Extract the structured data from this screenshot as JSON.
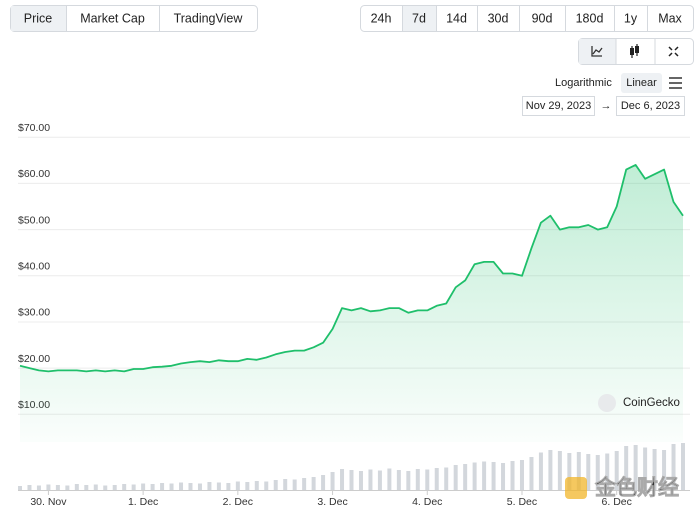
{
  "controls": {
    "tabs": [
      "Price",
      "Market Cap",
      "TradingView"
    ],
    "ranges": [
      "24h",
      "7d",
      "14d",
      "30d",
      "90d",
      "180d",
      "1y",
      "Max"
    ],
    "scale_options": [
      "Logarithmic",
      "Linear"
    ],
    "date_from": "Nov 29, 2023",
    "date_arrow": "→",
    "date_to": "Dec 6, 2023",
    "watermark": "CoinGecko",
    "source_mark": "金色财经"
  },
  "chart_data": {
    "type": "line",
    "color": "#1fbf6b",
    "fill": true,
    "grid": true,
    "values": [
      20.5,
      20,
      19.5,
      19.3,
      19.5,
      19.5,
      19.5,
      19.3,
      19.5,
      19.3,
      19.5,
      19.3,
      19.8,
      19.8,
      20.2,
      20.3,
      20.5,
      21,
      21.3,
      21.5,
      21.3,
      21.7,
      21.5,
      21.5,
      22,
      21.8,
      22.3,
      23,
      23.5,
      23.8,
      23.8,
      24.5,
      25.5,
      28.5,
      33,
      32.5,
      33,
      32.3,
      32.5,
      33,
      33,
      32,
      32.5,
      32.5,
      33.5,
      34,
      37.5,
      39,
      42.5,
      43,
      43,
      40.5,
      40.5,
      40,
      46,
      51.5,
      53,
      50,
      50.5,
      50.5,
      51,
      50,
      50.5,
      55,
      63,
      64,
      61,
      62,
      63,
      56,
      53
    ],
    "volume": {
      "color": "#d3d7dc",
      "axis": "y2",
      "values": [
        8,
        10,
        9,
        11,
        10,
        9,
        12,
        10,
        11,
        9,
        10,
        12,
        11,
        13,
        12,
        14,
        13,
        15,
        14,
        13,
        16,
        15,
        14,
        17,
        16,
        18,
        17,
        20,
        22,
        21,
        24,
        26,
        30,
        36,
        42,
        40,
        38,
        41,
        39,
        43,
        40,
        38,
        42,
        41,
        44,
        45,
        50,
        52,
        55,
        57,
        56,
        54,
        58,
        60,
        66,
        75,
        80,
        78,
        74,
        76,
        72,
        70,
        73,
        78,
        88,
        90,
        85,
        82,
        80,
        92,
        94
      ]
    },
    "y2lim": [
      0,
      100
    ],
    "xlim": [
      0,
      70
    ],
    "xticks": [
      {
        "value": 3,
        "label": "30. Nov"
      },
      {
        "value": 13,
        "label": "1. Dec"
      },
      {
        "value": 23,
        "label": "2. Dec"
      },
      {
        "value": 33,
        "label": "3. Dec"
      },
      {
        "value": 43,
        "label": "4. Dec"
      },
      {
        "value": 53,
        "label": "5. Dec"
      },
      {
        "value": 63,
        "label": "6. Dec"
      }
    ],
    "ylim": [
      4,
      72
    ],
    "yticks": [
      {
        "value": 10,
        "label": "$10.00"
      },
      {
        "value": 20,
        "label": "$20.00"
      },
      {
        "value": 30,
        "label": "$30.00"
      },
      {
        "value": 40,
        "label": "$40.00"
      },
      {
        "value": 50,
        "label": "$50.00"
      },
      {
        "value": 60,
        "label": "$60.00"
      },
      {
        "value": 70,
        "label": "$70.00"
      }
    ]
  }
}
